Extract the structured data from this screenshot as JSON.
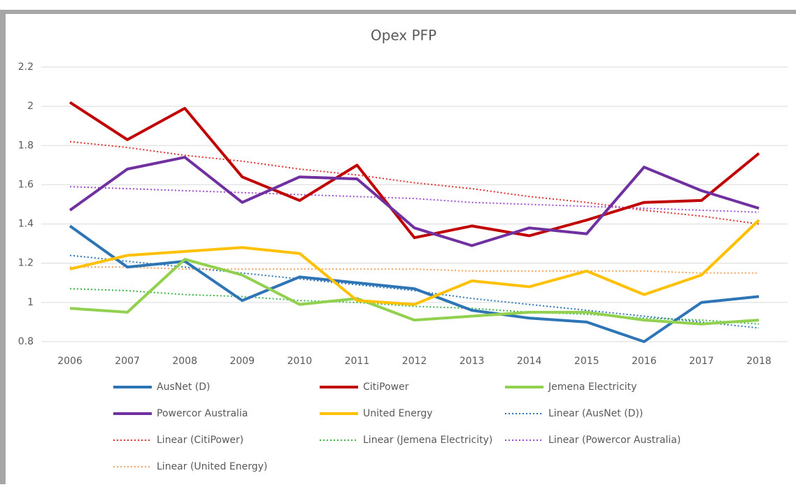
{
  "chart_data": {
    "type": "line",
    "title": "Opex PFP",
    "categories": [
      "2006",
      "2007",
      "2008",
      "2009",
      "2010",
      "2011",
      "2012",
      "2013",
      "2014",
      "2015",
      "2016",
      "2017",
      "2018"
    ],
    "ylim": [
      0.8,
      2.2
    ],
    "yticks": [
      0.8,
      1,
      1.2,
      1.4,
      1.6,
      1.8,
      2,
      2.2
    ],
    "grid": true,
    "series": [
      {
        "name": "AusNet (D)",
        "color": "#2e75b6",
        "dash": false,
        "values": [
          1.39,
          1.18,
          1.21,
          1.01,
          1.13,
          1.1,
          1.07,
          0.96,
          0.92,
          0.9,
          0.8,
          1.0,
          1.03
        ]
      },
      {
        "name": "CitiPower",
        "color": "#c00000",
        "dash": false,
        "values": [
          2.02,
          1.83,
          1.99,
          1.64,
          1.52,
          1.7,
          1.33,
          1.39,
          1.34,
          1.42,
          1.51,
          1.52,
          1.76
        ]
      },
      {
        "name": "Jemena Electricity",
        "color": "#92d050",
        "dash": false,
        "values": [
          0.97,
          0.95,
          1.22,
          1.14,
          0.99,
          1.02,
          0.91,
          0.93,
          0.95,
          0.95,
          0.91,
          0.89,
          0.91
        ]
      },
      {
        "name": "Powercor Australia",
        "color": "#7030a0",
        "dash": false,
        "values": [
          1.47,
          1.68,
          1.74,
          1.51,
          1.64,
          1.63,
          1.38,
          1.29,
          1.38,
          1.35,
          1.69,
          1.57,
          1.48
        ]
      },
      {
        "name": "United Energy",
        "color": "#ffc000",
        "dash": false,
        "values": [
          1.17,
          1.24,
          1.26,
          1.28,
          1.25,
          1.01,
          0.99,
          1.11,
          1.08,
          1.16,
          1.04,
          1.14,
          1.42
        ]
      },
      {
        "name": "Linear (AusNet (D))",
        "color": "#2e75b6",
        "dash": true,
        "values": [
          1.24,
          1.21,
          1.18,
          1.15,
          1.12,
          1.09,
          1.06,
          1.02,
          0.99,
          0.96,
          0.93,
          0.9,
          0.87
        ]
      },
      {
        "name": "Linear (CitiPower)",
        "color": "#e03030",
        "dash": true,
        "values": [
          1.82,
          1.79,
          1.75,
          1.72,
          1.68,
          1.65,
          1.61,
          1.58,
          1.54,
          1.51,
          1.47,
          1.44,
          1.4
        ]
      },
      {
        "name": "Linear (Jemena Electricity)",
        "color": "#3cb44b",
        "dash": true,
        "values": [
          1.07,
          1.06,
          1.04,
          1.03,
          1.01,
          1.0,
          0.98,
          0.97,
          0.95,
          0.94,
          0.92,
          0.91,
          0.89
        ]
      },
      {
        "name": "Linear (Powercor Australia)",
        "color": "#9a4fd0",
        "dash": true,
        "values": [
          1.59,
          1.58,
          1.57,
          1.56,
          1.55,
          1.54,
          1.53,
          1.51,
          1.5,
          1.49,
          1.48,
          1.47,
          1.46
        ]
      },
      {
        "name": "Linear (United Energy)",
        "color": "#f4a460",
        "dash": true,
        "values": [
          1.18,
          1.18,
          1.17,
          1.17,
          1.17,
          1.17,
          1.17,
          1.16,
          1.16,
          1.16,
          1.16,
          1.15,
          1.15
        ]
      }
    ]
  }
}
